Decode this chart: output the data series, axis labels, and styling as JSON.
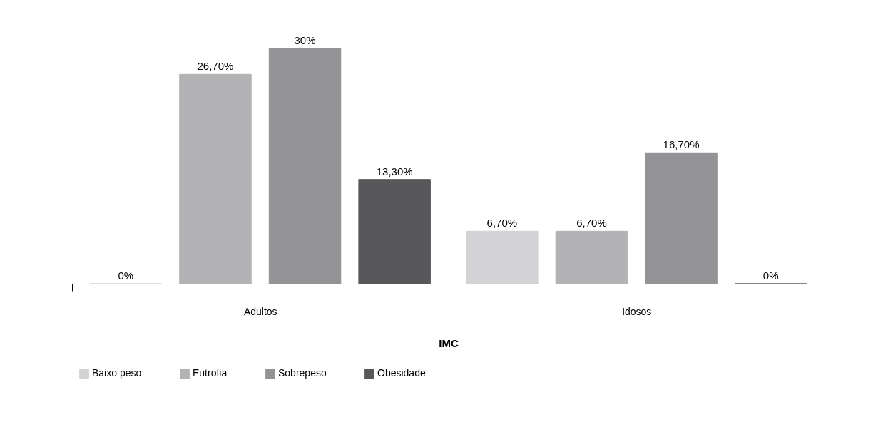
{
  "chart_data": {
    "type": "bar",
    "xlabel": "IMC",
    "categories": [
      "Adultos",
      "Idosos"
    ],
    "series": [
      {
        "name": "Baixo peso",
        "color": "#d3d3d5",
        "values": [
          0,
          6.7
        ],
        "value_labels": [
          "0%",
          "6,70%"
        ]
      },
      {
        "name": "Eutrofia",
        "color": "#b3b3b6",
        "values": [
          26.7,
          6.7
        ],
        "value_labels": [
          "26,70%",
          "6,70%"
        ]
      },
      {
        "name": "Sobrepeso",
        "color": "#939396",
        "values": [
          30,
          16.7
        ],
        "value_labels": [
          "30%",
          "16,70%"
        ]
      },
      {
        "name": "Obesidade",
        "color": "#58585a",
        "values": [
          13.3,
          0
        ],
        "value_labels": [
          "13,30%",
          "0%"
        ]
      }
    ],
    "legend": "bottom",
    "grid": false
  }
}
